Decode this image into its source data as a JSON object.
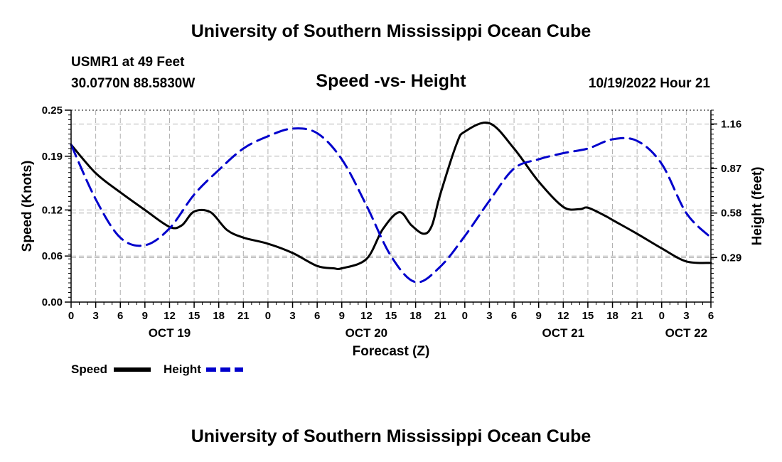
{
  "header": {
    "title": "University of Southern Mississippi Ocean Cube",
    "station": "USMR1 at 49 Feet",
    "coords": "30.0770N  88.5830W",
    "subtitle": "Speed -vs- Height",
    "datetime": "10/19/2022 Hour 21"
  },
  "footer": {
    "title": "University of Southern Mississippi Ocean Cube"
  },
  "chart_data": {
    "type": "line",
    "title": "Speed -vs- Height",
    "xlabel": "Forecast (Z)",
    "ylabel": "Speed (Knots)",
    "y2label": "Height (feet)",
    "xlim": [
      0,
      78
    ],
    "ylim": [
      0,
      0.25
    ],
    "y2lim": [
      0,
      1.25
    ],
    "grid": true,
    "x_ticks": [
      0,
      3,
      6,
      9,
      12,
      15,
      18,
      21,
      24,
      27,
      30,
      33,
      36,
      39,
      42,
      45,
      48,
      51,
      54,
      57,
      60,
      63,
      66,
      69,
      72,
      75,
      78
    ],
    "x_tick_labels": [
      "0",
      "3",
      "6",
      "9",
      "12",
      "15",
      "18",
      "21",
      "0",
      "3",
      "6",
      "9",
      "12",
      "15",
      "18",
      "21",
      "0",
      "3",
      "6",
      "9",
      "12",
      "15",
      "18",
      "21",
      "0",
      "3",
      "6"
    ],
    "day_labels": [
      {
        "x": 12,
        "label": "OCT 19"
      },
      {
        "x": 36,
        "label": "OCT 20"
      },
      {
        "x": 60,
        "label": "OCT 21"
      },
      {
        "x": 75,
        "label": "OCT 22"
      }
    ],
    "y_ticks": [
      0.0,
      0.06,
      0.12,
      0.19,
      0.25
    ],
    "y_tick_labels": [
      "0.00",
      "0.06",
      "0.12",
      "0.19",
      "0.25"
    ],
    "y2_ticks": [
      0.29,
      0.58,
      0.87,
      1.16
    ],
    "y2_tick_labels": [
      "0.29",
      "0.58",
      "0.87",
      "1.16"
    ],
    "series": [
      {
        "name": "Speed",
        "axis": "left",
        "color": "#000000",
        "dash": "solid",
        "x": [
          0,
          3,
          6,
          9,
          12,
          13.5,
          15,
          17,
          19,
          21,
          24,
          27,
          30,
          32,
          33,
          36,
          38,
          40,
          41.5,
          43,
          44,
          45,
          47,
          48,
          51,
          54,
          57,
          60,
          62,
          63,
          65,
          66,
          69,
          72,
          75,
          78
        ],
        "y": [
          0.205,
          0.168,
          0.143,
          0.12,
          0.098,
          0.1,
          0.118,
          0.117,
          0.094,
          0.084,
          0.076,
          0.064,
          0.047,
          0.044,
          0.044,
          0.056,
          0.095,
          0.117,
          0.1,
          0.089,
          0.1,
          0.14,
          0.206,
          0.222,
          0.233,
          0.2,
          0.157,
          0.124,
          0.121,
          0.123,
          0.113,
          0.107,
          0.089,
          0.07,
          0.053,
          0.051
        ]
      },
      {
        "name": "Height",
        "axis": "right",
        "color": "#0000cc",
        "dash": "dashed",
        "x": [
          0,
          3,
          6,
          9,
          12,
          15,
          18,
          21,
          24,
          27,
          30,
          33,
          36,
          39,
          42,
          45,
          48,
          51,
          54,
          57,
          60,
          63,
          66,
          69,
          72,
          75,
          78
        ],
        "y": [
          1.025,
          0.67,
          0.42,
          0.37,
          0.48,
          0.7,
          0.86,
          1.0,
          1.08,
          1.13,
          1.1,
          0.93,
          0.63,
          0.3,
          0.13,
          0.23,
          0.43,
          0.66,
          0.87,
          0.93,
          0.97,
          1.0,
          1.06,
          1.05,
          0.9,
          0.58,
          0.42
        ]
      }
    ],
    "legend": {
      "position": "bottom-left",
      "items": [
        "Speed",
        "Height"
      ]
    }
  }
}
